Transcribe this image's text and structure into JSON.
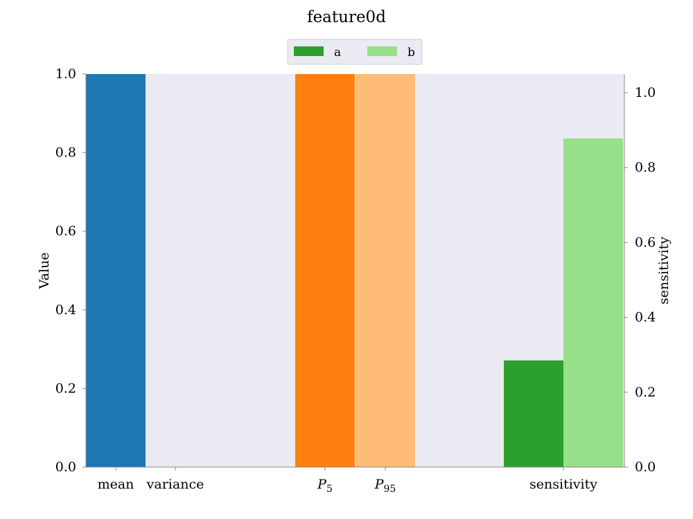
{
  "chart_data": {
    "type": "bar",
    "title": "feature0d",
    "ylabel_left": "Value",
    "ylabel_right": "sensitivity",
    "categories": [
      "mean",
      "variance",
      "P_5",
      "P_95",
      "sensitivity"
    ],
    "category_labels": [
      {
        "text": "mean",
        "sub": ""
      },
      {
        "text": "variance",
        "sub": ""
      },
      {
        "text": "P",
        "sub": "5"
      },
      {
        "text": "P",
        "sub": "95"
      },
      {
        "text": "sensitivity",
        "sub": ""
      }
    ],
    "bars": [
      {
        "category": "mean",
        "axis": "left",
        "value": 1.0,
        "color": "#1f77b4"
      },
      {
        "category": "variance",
        "axis": "left",
        "value": 0.0,
        "color": "#aec7e8"
      },
      {
        "category": "P_5",
        "axis": "left",
        "value": 1.0,
        "color": "#ff7f0e"
      },
      {
        "category": "P_95",
        "axis": "left",
        "value": 1.0,
        "color": "#ffbb78"
      },
      {
        "category": "sensitivity",
        "series": "a",
        "axis": "right",
        "value": 0.285,
        "color": "#2ca02c"
      },
      {
        "category": "sensitivity",
        "series": "b",
        "axis": "right",
        "value": 0.878,
        "color": "#98df8a"
      }
    ],
    "legend": [
      {
        "name": "a",
        "color": "#2ca02c"
      },
      {
        "name": "b",
        "color": "#98df8a"
      }
    ],
    "legend_placement": "top-center",
    "ylim_left": [
      0,
      1.0
    ],
    "ylim_right": [
      0,
      1.05
    ],
    "yticks_left": [
      "0.0",
      "0.2",
      "0.4",
      "0.6",
      "0.8",
      "1.0"
    ],
    "yticks_right": [
      "0.0",
      "0.2",
      "0.4",
      "0.6",
      "0.8",
      "1.0"
    ],
    "grid": false,
    "background_color": "#eaeaf2"
  }
}
